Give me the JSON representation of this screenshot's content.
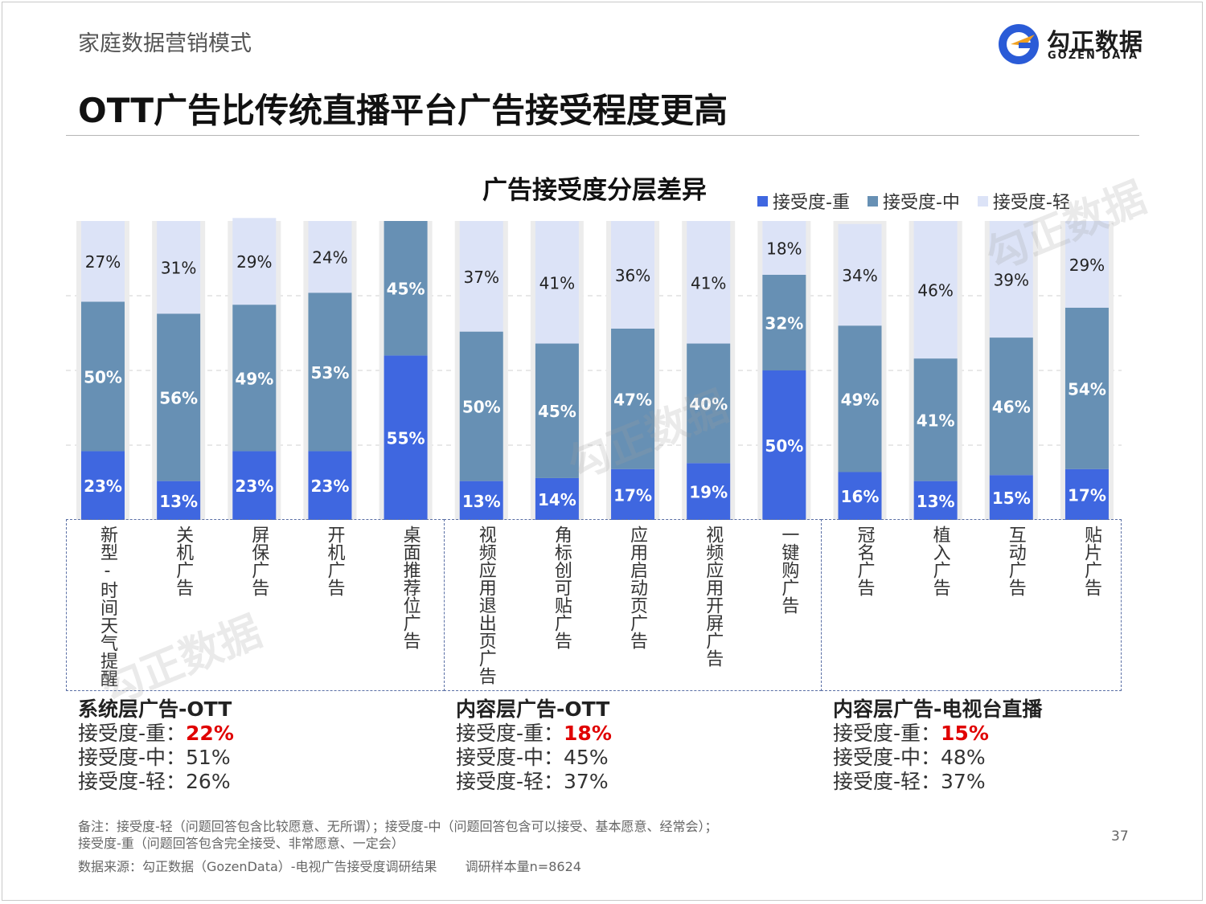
{
  "header": {
    "subtitle": "家庭数据营销模式",
    "title": "OTT广告比传统直播平台广告接受程度更高"
  },
  "logo": {
    "cn": "勾正数据",
    "en": "GOZEN DATA"
  },
  "chart_data": {
    "type": "bar",
    "stacked": true,
    "title": "广告接受度分层差异",
    "categories": [
      "新型-时间天气提醒",
      "关机广告",
      "屏保广告",
      "开机广告",
      "桌面推荐位广告",
      "视频应用退出页广告",
      "角标创可贴广告",
      "应用启动页广告",
      "视频应用开屏广告",
      "一键购广告",
      "冠名广告",
      "植入广告",
      "互动广告",
      "贴片广告"
    ],
    "series": [
      {
        "name": "接受度-重",
        "color": "#3f67e0",
        "values": [
          23,
          13,
          23,
          23,
          55,
          13,
          14,
          17,
          19,
          50,
          16,
          13,
          15,
          17
        ]
      },
      {
        "name": "接受度-中",
        "color": "#6790b4",
        "values": [
          50,
          56,
          49,
          53,
          45,
          50,
          45,
          47,
          40,
          32,
          49,
          41,
          46,
          54
        ]
      },
      {
        "name": "接受度-轻",
        "color": "#dce3f7",
        "values": [
          27,
          31,
          29,
          24,
          0,
          37,
          41,
          36,
          41,
          18,
          34,
          46,
          39,
          29
        ]
      }
    ],
    "value_suffix": "%",
    "legend_position": "top-right",
    "grid": true,
    "ylim": [
      0,
      100
    ]
  },
  "groups": [
    {
      "title": "系统层广告-OTT",
      "heavy_label": "接受度-重：",
      "heavy_value": "22%",
      "mid": "接受度-中：51%",
      "light": "接受度-轻：26%"
    },
    {
      "title": "内容层广告-OTT",
      "heavy_label": "接受度-重：",
      "heavy_value": "18%",
      "mid": "接受度-中：45%",
      "light": "接受度-轻：37%"
    },
    {
      "title": "内容层广告-电视台直播",
      "heavy_label": "接受度-重：",
      "heavy_value": "15%",
      "mid": "接受度-中：48%",
      "light": "接受度-轻：37%"
    }
  ],
  "footer": {
    "note_line1": "备注：接受度-轻（问题回答包含比较愿意、无所谓）；接受度-中（问题回答包含可以接受、基本愿意、经常会）；",
    "note_line2": "接受度-重（问题回答包含完全接受、非常愿意、一定会）",
    "source": "数据来源：勾正数据（GozenData）-电视广告接受度调研结果",
    "sample": "调研样本量n=8624",
    "page": "37"
  }
}
